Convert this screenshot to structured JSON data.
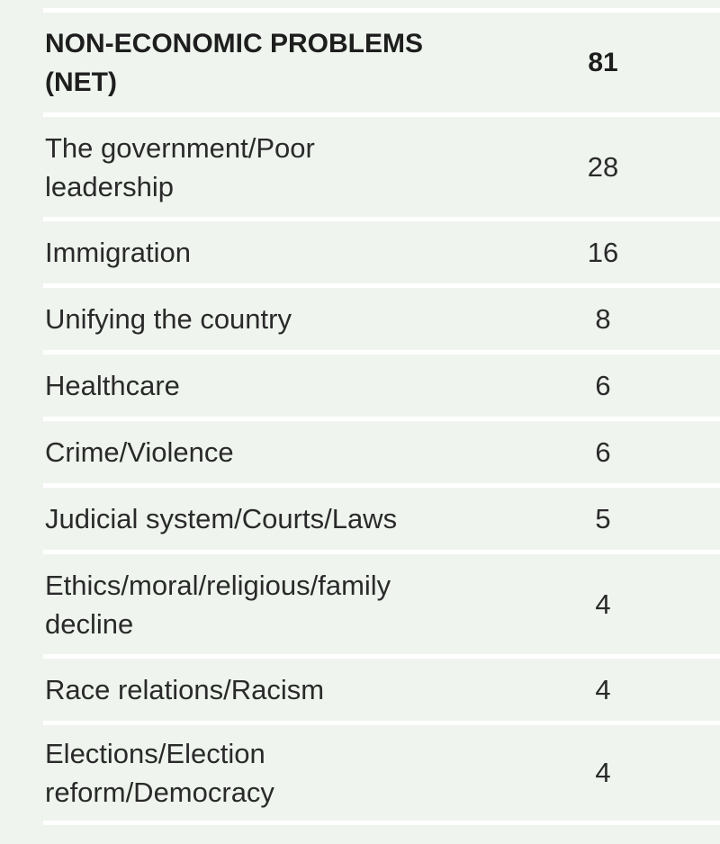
{
  "table": {
    "rows": [
      {
        "label": "NON-ECONOMIC PROBLEMS (NET)",
        "value": "81",
        "bold": true
      },
      {
        "label": "The government/Poor leadership",
        "value": "28"
      },
      {
        "label": "Immigration",
        "value": "16"
      },
      {
        "label": "Unifying the country",
        "value": "8"
      },
      {
        "label": "Healthcare",
        "value": "6"
      },
      {
        "label": "Crime/Violence",
        "value": "6"
      },
      {
        "label": "Judicial system/Courts/Laws",
        "value": "5"
      },
      {
        "label": "Ethics/moral/religious/family decline",
        "value": "4"
      },
      {
        "label": "Race relations/Racism",
        "value": "4"
      },
      {
        "label": "Elections/Election reform/Democracy",
        "value": "4"
      }
    ]
  }
}
